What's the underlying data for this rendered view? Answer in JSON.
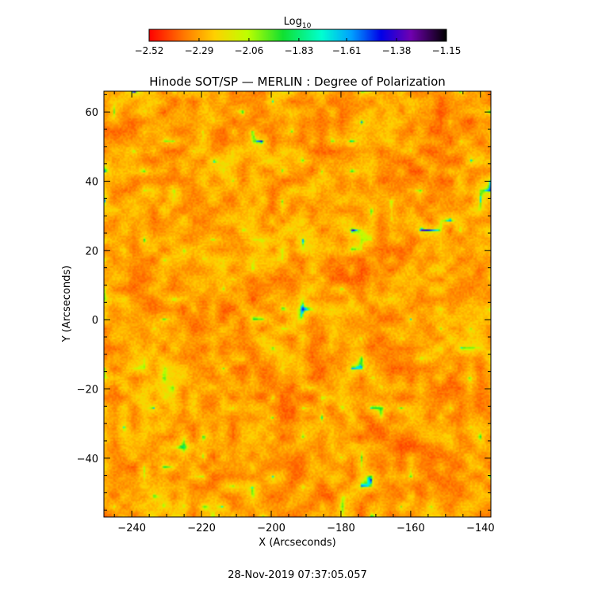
{
  "chart_data": {
    "type": "heatmap",
    "title": "Hinode SOT/SP — MERLIN : Degree of Polarization",
    "xlabel": "X (Arcseconds)",
    "ylabel": "Y (Arcseconds)",
    "xlim": [
      -248,
      -137
    ],
    "ylim": [
      -57,
      66
    ],
    "x_ticks": [
      -240,
      -220,
      -200,
      -180,
      -160,
      -140
    ],
    "y_ticks": [
      -40,
      -20,
      0,
      20,
      40,
      60
    ],
    "x_tick_labels": [
      "−240",
      "−220",
      "−200",
      "−180",
      "−160",
      "−140"
    ],
    "y_tick_labels": [
      "−40",
      "−20",
      "0",
      "20",
      "40",
      "60"
    ],
    "colorbar": {
      "label_base": "Log",
      "label_sub": "10",
      "range": [
        -2.52,
        -1.15
      ],
      "ticks": [
        -2.52,
        -2.29,
        -2.06,
        -1.83,
        -1.61,
        -1.38,
        -1.15
      ],
      "tick_labels": [
        "−2.52",
        "−2.29",
        "−2.06",
        "−1.83",
        "−1.61",
        "−1.38",
        "−1.15"
      ],
      "colormap": "rainbow: red → orange → yellow → green → cyan → blue → purple → black"
    },
    "timestamp": "28-Nov-2019 07:37:05.057"
  },
  "colors": {
    "background": "#ffffff",
    "axis": "#000000"
  }
}
